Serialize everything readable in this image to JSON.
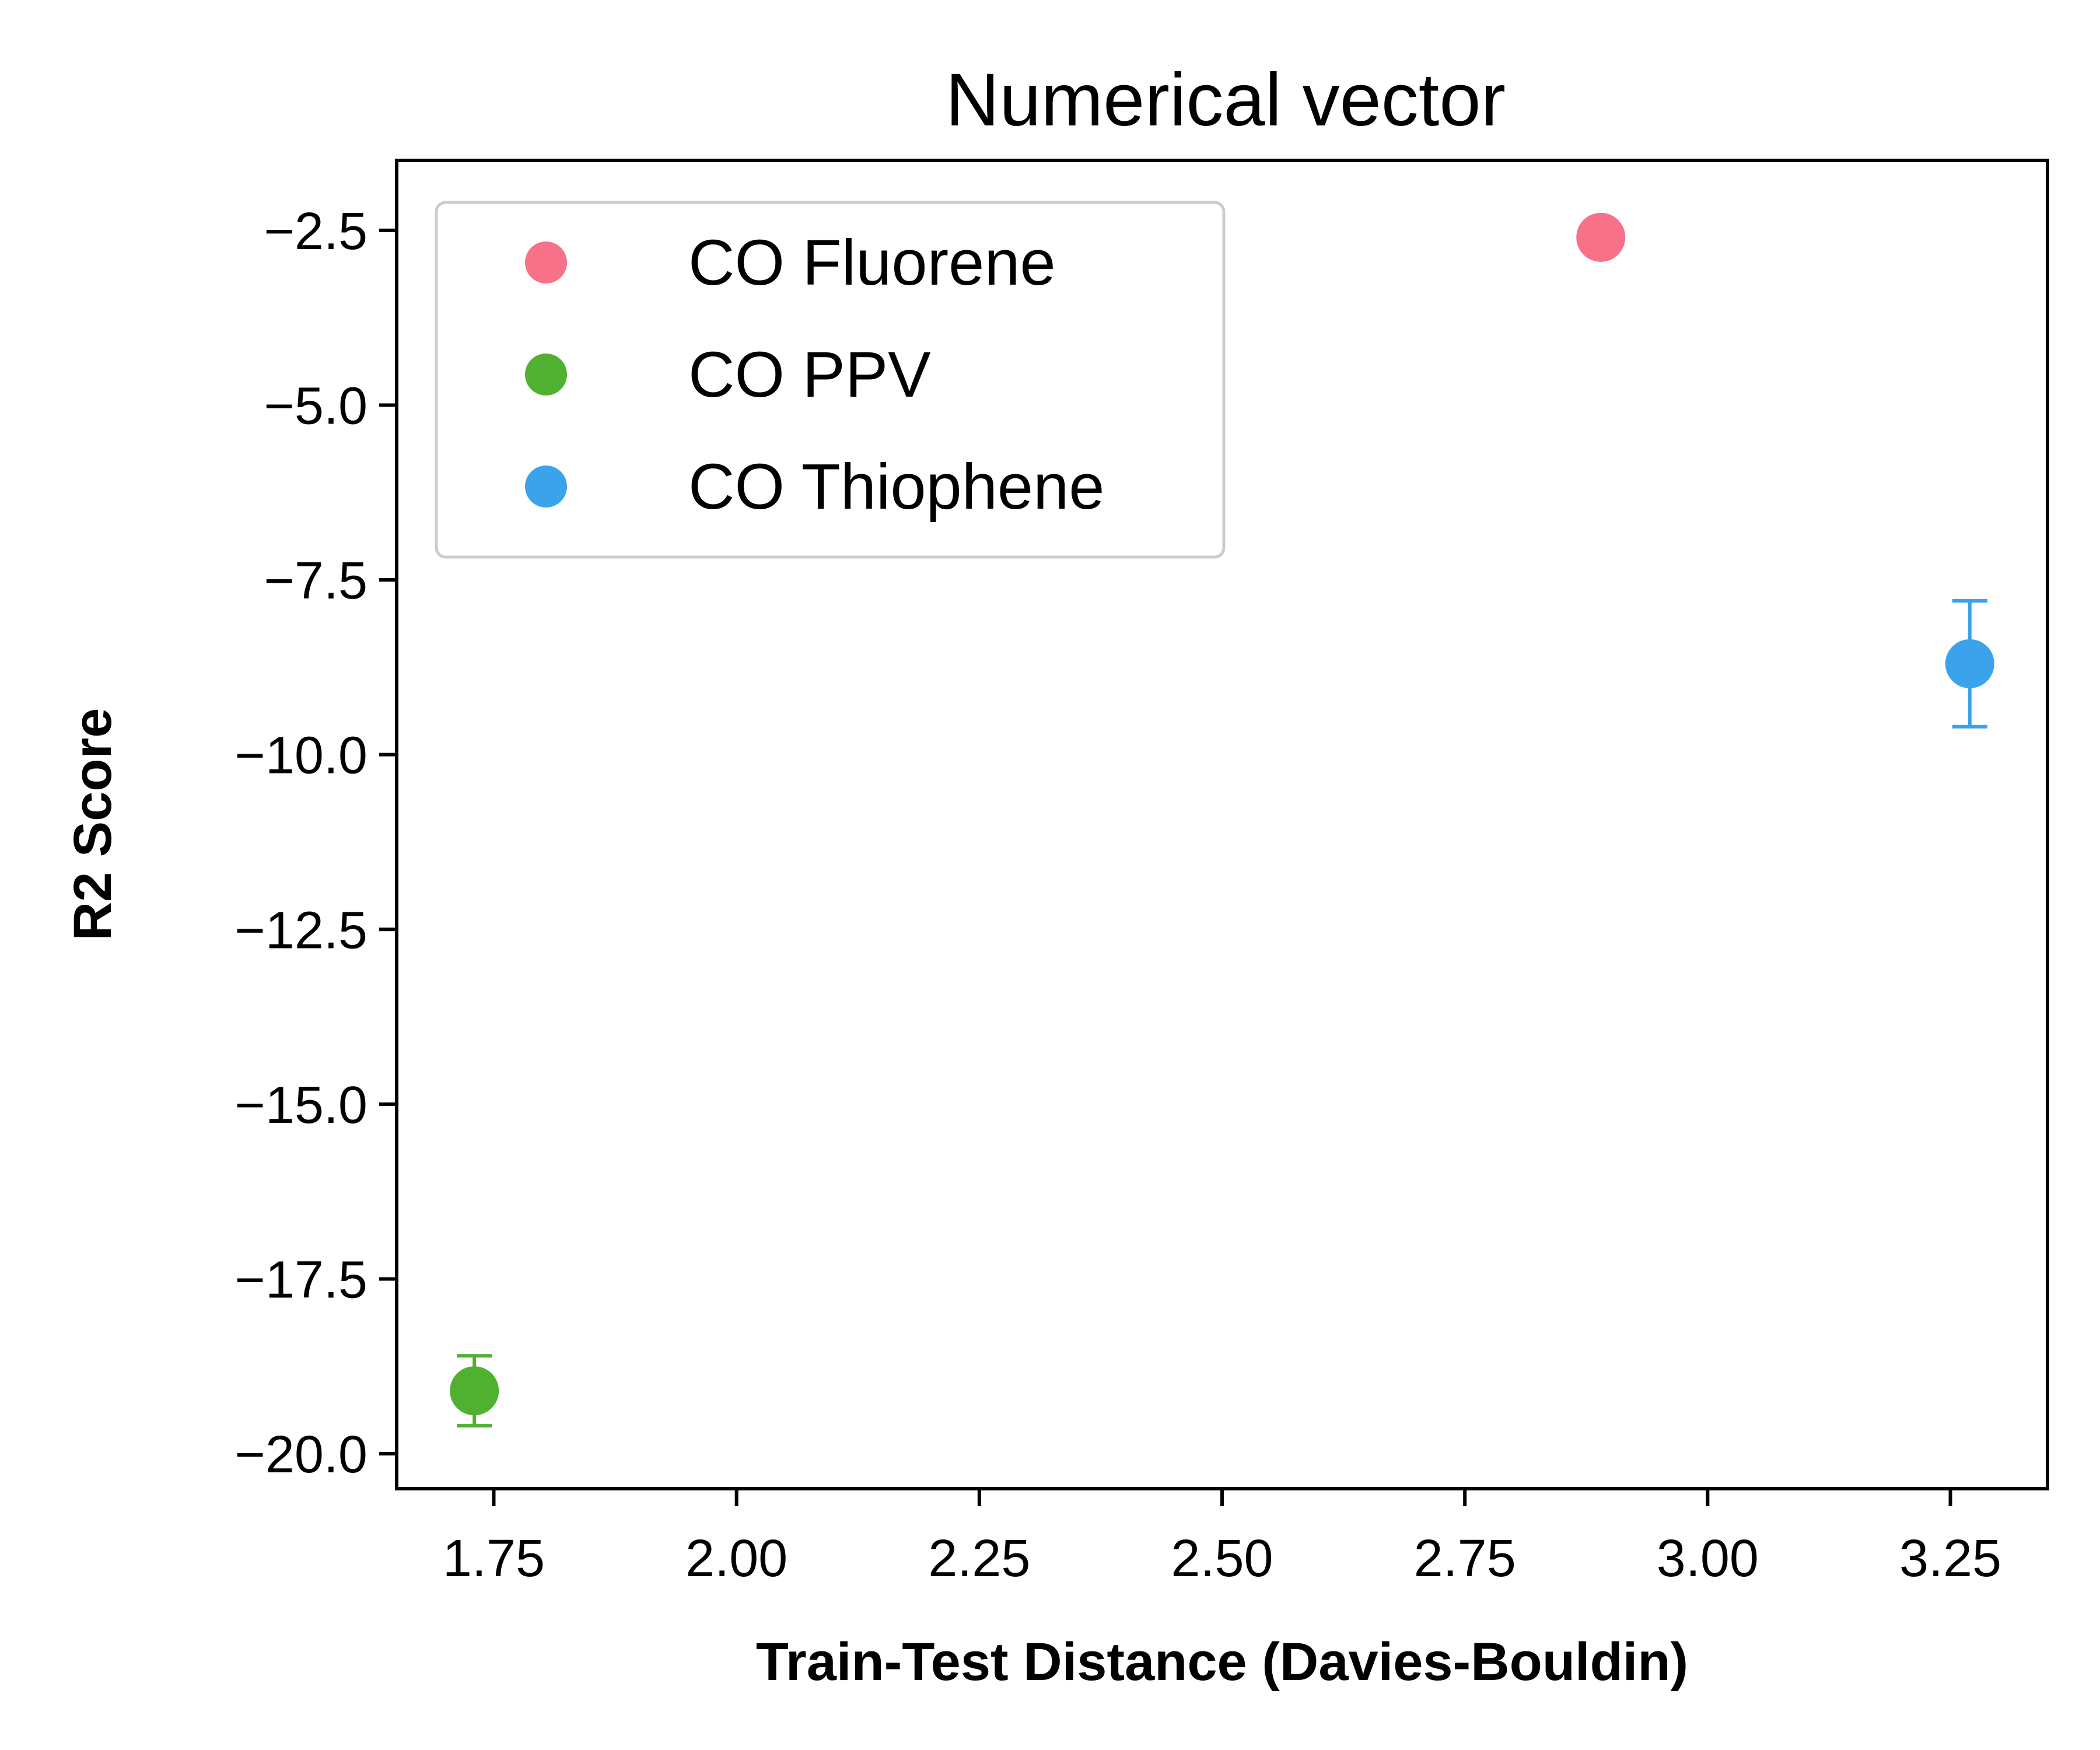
{
  "chart_data": {
    "type": "scatter",
    "title": "Numerical vector",
    "xlabel": "Train-Test Distance (Davies-Bouldin)",
    "ylabel": "R2 Score",
    "xlim": [
      1.65,
      3.35
    ],
    "ylim": [
      -20.5,
      -1.5
    ],
    "xticks": [
      1.75,
      2.0,
      2.25,
      2.5,
      2.75,
      3.0,
      3.25
    ],
    "xtick_labels": [
      "1.75",
      "2.00",
      "2.25",
      "2.50",
      "2.75",
      "3.00",
      "3.25"
    ],
    "yticks": [
      -2.5,
      -5.0,
      -7.5,
      -10.0,
      -12.5,
      -15.0,
      -17.5,
      -20.0
    ],
    "ytick_labels": [
      "−2.5",
      "−5.0",
      "−7.5",
      "−10.0",
      "−12.5",
      "−15.0",
      "−17.5",
      "−20.0"
    ],
    "grid": false,
    "legend_position": "upper-left",
    "series": [
      {
        "name": "CO Fluorene",
        "color": "#f77189",
        "x": 2.89,
        "y": -2.6,
        "yerr": 0
      },
      {
        "name": "CO PPV",
        "color": "#50b131",
        "x": 1.73,
        "y": -19.1,
        "yerr": 0.5
      },
      {
        "name": "CO Thiophene",
        "color": "#3ba3ec",
        "x": 3.27,
        "y": -8.7,
        "yerr": 0.9
      }
    ]
  }
}
